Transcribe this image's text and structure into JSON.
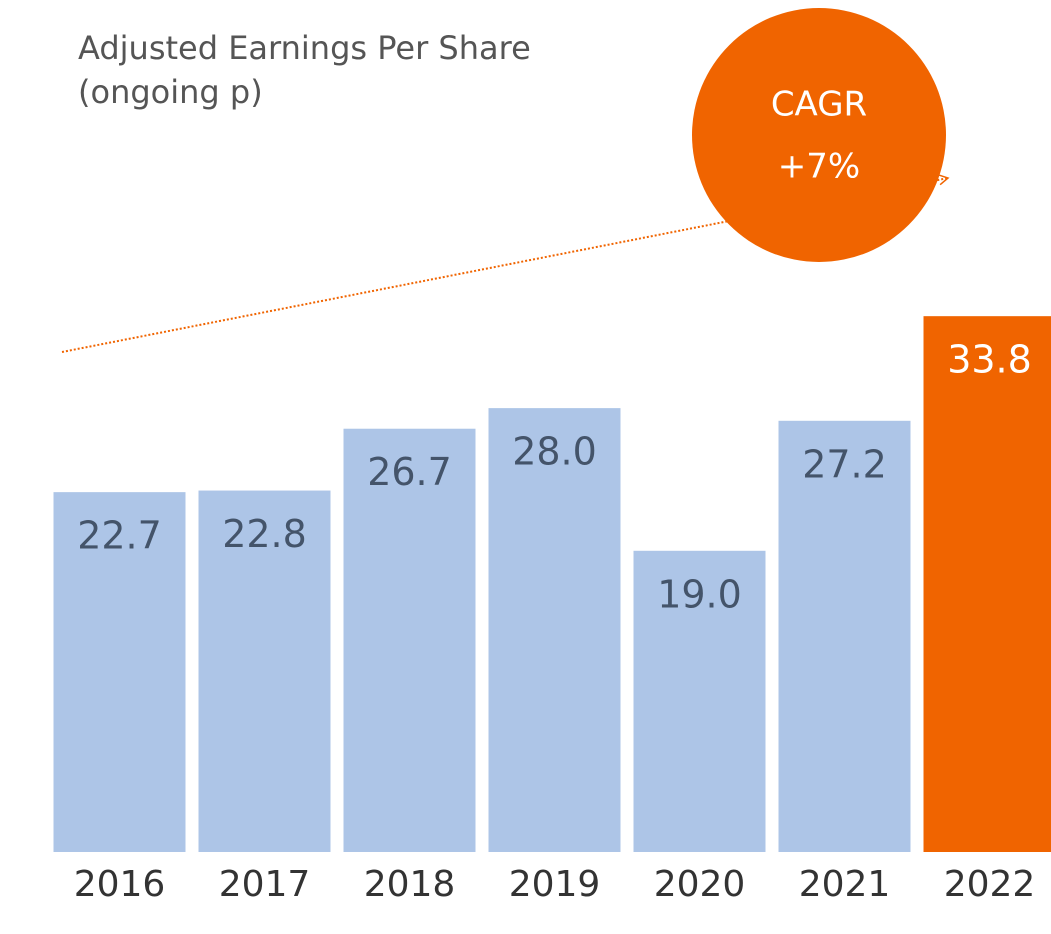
{
  "chart_data": {
    "type": "bar",
    "title": "Adjusted Earnings Per Share",
    "subtitle": "(ongoing p)",
    "annotations": [
      "CAGR",
      "+7%"
    ],
    "categories": [
      "2016",
      "2017",
      "2018",
      "2019",
      "2020",
      "2021",
      "2022"
    ],
    "values": [
      22.7,
      22.8,
      26.7,
      28.0,
      19.0,
      27.2,
      33.8
    ],
    "value_labels": [
      "22.7",
      "22.8",
      "26.7",
      "28.0",
      "19.0",
      "27.2",
      "33.8"
    ],
    "colors": [
      "#adc5e7",
      "#adc5e7",
      "#adc5e7",
      "#adc5e7",
      "#adc5e7",
      "#adc5e7",
      "#f06400"
    ],
    "ylim": [
      0,
      34
    ],
    "grid": false
  }
}
